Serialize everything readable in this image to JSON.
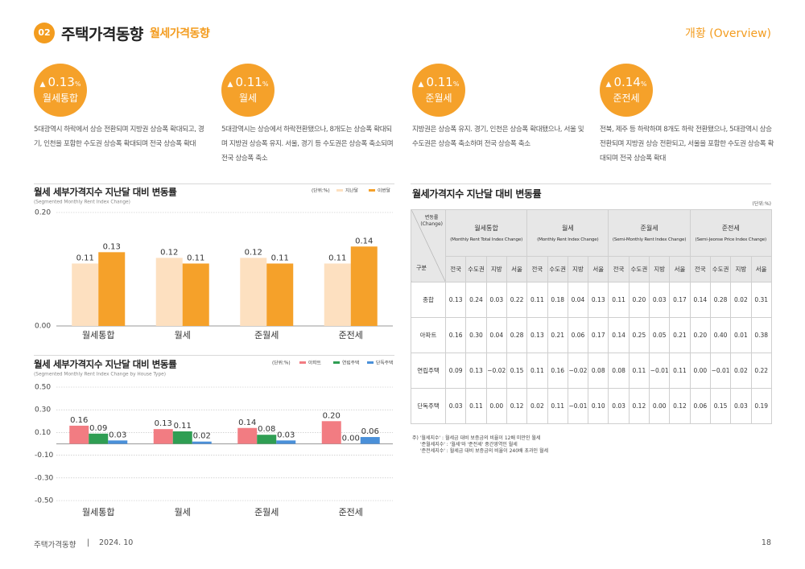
{
  "header": {
    "badge": "02",
    "title": "주택가격동향",
    "subtitle": "월세가격동향",
    "section": "개황 (Overview)"
  },
  "summaries": [
    {
      "arrow": "▲",
      "value": 0.13,
      "unit": "%",
      "label": "월세통합",
      "text": "5대광역시 하락에서 상승 전환되며 지방권 상승폭 확대되고, 경기, 인천을 포함한 수도권 상승폭 확대되며 전국 상승폭 확대"
    },
    {
      "arrow": "▲",
      "value": 0.11,
      "unit": "%",
      "label": "월세",
      "text": "5대광역시는 상승에서 하락전환됐으나, 8개도는 상승폭 확대되며 지방권 상승폭 유지. 서울, 경기 등 수도권은 상승폭 축소되며 전국 상승폭 축소"
    },
    {
      "arrow": "▲",
      "value": 0.11,
      "unit": "%",
      "label": "준월세",
      "text": "지방권은 상승폭 유지. 경기, 인천은 상승폭 확대됐으나, 서울 및 수도권은 상승폭 축소하며 전국 상승폭 축소"
    },
    {
      "arrow": "▲",
      "value": 0.14,
      "unit": "%",
      "label": "준전세",
      "text": "전북, 제주 등 하락하며 8개도 하락 전환됐으나, 5대광역시 상승 전환되며 지방권 상승 전환되고, 서울을 포함한 수도권 상승폭 확대되며 전국 상승폭 확대"
    }
  ],
  "chart_data": [
    {
      "type": "bar",
      "title": "월세 세부가격지수 지난달 대비 변동률",
      "subtitle": "(Segmented Monthly Rent Index Change)",
      "unit_note": "(단위:%)",
      "categories": [
        "월세통합",
        "월세",
        "준월세",
        "준전세"
      ],
      "series": [
        {
          "name": "지난달",
          "color": "#fde0c0",
          "values": [
            0.11,
            0.12,
            0.12,
            0.11
          ]
        },
        {
          "name": "이번달",
          "color": "#f5a12a",
          "values": [
            0.13,
            0.11,
            0.11,
            0.14
          ]
        }
      ],
      "ylim": [
        0,
        0.2
      ],
      "yticks": [
        {
          "value": 0,
          "label": "0.00"
        },
        {
          "value": 0.2,
          "label": "0.20"
        }
      ],
      "grid": true
    },
    {
      "type": "bar",
      "title": "월세 세부가격지수 지난달 대비 변동률",
      "subtitle": "(Segmented Monthly Rent Index Change by House Type)",
      "unit_note": "(단위:%)",
      "categories": [
        "월세통합",
        "월세",
        "준월세",
        "준전세"
      ],
      "series": [
        {
          "name": "아파트",
          "color": "#f27c82",
          "values": [
            0.16,
            0.13,
            0.14,
            0.2
          ],
          "value_labels": [
            "0.16",
            "0.13",
            "0.14",
            "0.20"
          ]
        },
        {
          "name": "연립주택",
          "color": "#2f9e53",
          "values": [
            0.09,
            0.11,
            0.08,
            0
          ],
          "value_labels": [
            "0.09",
            "0.11",
            "0.08",
            "0.00"
          ]
        },
        {
          "name": "단독주택",
          "color": "#4a90d9",
          "values": [
            0.03,
            0.02,
            0.03,
            0.06
          ],
          "value_labels": [
            "0.03",
            "0.02",
            "0.03",
            "0.06"
          ]
        }
      ],
      "ylim": [
        -0.5,
        0.5
      ],
      "yticks": [
        {
          "value": 0.5,
          "label": "0.50"
        },
        {
          "value": 0.3,
          "label": "0.30"
        },
        {
          "value": 0.1,
          "label": "0.10"
        },
        {
          "value": -0.1,
          "label": "-0.10"
        },
        {
          "value": -0.3,
          "label": "-0.30"
        },
        {
          "value": -0.5,
          "label": "-0.50"
        }
      ],
      "grid": true
    }
  ],
  "table": {
    "title": "월세가격지수 지난달 대비 변동률",
    "unit_note": "(단위:%)",
    "corner_top": "변동률",
    "corner_top_en": "(Change)",
    "corner_bottom": "구분",
    "groups": [
      {
        "name": "월세통합",
        "name_en": "(Monthly Rent Total Index Change)"
      },
      {
        "name": "월세",
        "name_en": "(Monthly Rent Index Change)"
      },
      {
        "name": "준월세",
        "name_en": "(Semi-Monthly Rent Index Change)"
      },
      {
        "name": "준전세",
        "name_en": "(Semi-Jeonse Price Index Change)"
      }
    ],
    "subcolumns": [
      "전국",
      "수도권",
      "지방",
      "서울"
    ],
    "rows": [
      {
        "label": "종합",
        "values": [
          "0.13",
          "0.24",
          "0.03",
          "0.22",
          "0.11",
          "0.18",
          "0.04",
          "0.13",
          "0.11",
          "0.20",
          "0.03",
          "0.17",
          "0.14",
          "0.28",
          "0.02",
          "0.31"
        ]
      },
      {
        "label": "아파트",
        "values": [
          "0.16",
          "0.30",
          "0.04",
          "0.28",
          "0.13",
          "0.21",
          "0.06",
          "0.17",
          "0.14",
          "0.25",
          "0.05",
          "0.21",
          "0.20",
          "0.40",
          "0.01",
          "0.38"
        ]
      },
      {
        "label": "연립주택",
        "values": [
          "0.09",
          "0.13",
          "−0.02",
          "0.15",
          "0.11",
          "0.16",
          "−0.02",
          "0.08",
          "0.08",
          "0.11",
          "−0.01",
          "0.11",
          "0.00",
          "−0.01",
          "0.02",
          "0.22"
        ]
      },
      {
        "label": "단독주택",
        "values": [
          "0.03",
          "0.11",
          "0.00",
          "0.12",
          "0.02",
          "0.11",
          "−0.01",
          "0.10",
          "0.03",
          "0.12",
          "0.00",
          "0.12",
          "0.06",
          "0.15",
          "0.03",
          "0.19"
        ]
      }
    ]
  },
  "notes": [
    "주) '월세지수' : 월세금 대비 보증금의 비율이 12배 미만인 월세",
    "'준월세지수' : '월세'와 '준전세' 중간영역인 월세",
    "'준전세지수' : 월세금 대비 보증금의 비율이 240배 초과인 월세"
  ],
  "footer": {
    "left": "주택가격동향",
    "separator": "|",
    "date": "2024. 10",
    "page": "18"
  }
}
